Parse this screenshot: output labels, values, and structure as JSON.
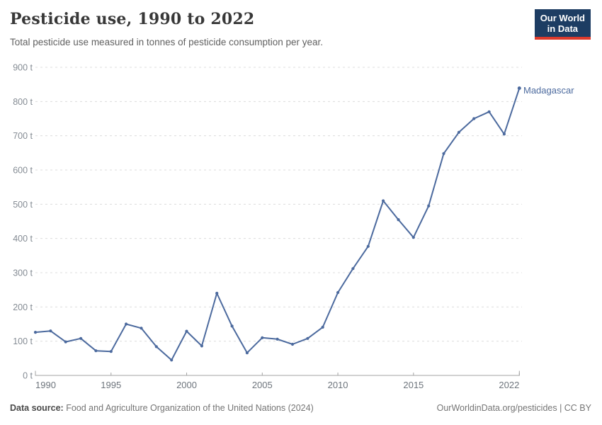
{
  "header": {
    "title": "Pesticide use, 1990 to 2022",
    "subtitle": "Total pesticide use measured in tonnes of pesticide consumption per year."
  },
  "logo": {
    "line1": "Our World",
    "line2": "in Data",
    "bg_color": "#1d3d63",
    "accent_color": "#dc3a2c"
  },
  "chart_data": {
    "type": "line",
    "title": "Pesticide use, 1990 to 2022",
    "xlabel": "",
    "ylabel": "tonnes of pesticide consumption per year",
    "x": [
      1990,
      1991,
      1992,
      1993,
      1994,
      1995,
      1996,
      1997,
      1998,
      1999,
      2000,
      2001,
      2002,
      2003,
      2004,
      2005,
      2006,
      2007,
      2008,
      2009,
      2010,
      2011,
      2012,
      2013,
      2014,
      2015,
      2016,
      2017,
      2018,
      2019,
      2020,
      2021,
      2022
    ],
    "series": [
      {
        "name": "Madagascar",
        "color": "#4c6a9e",
        "values": [
          126,
          130,
          98,
          108,
          72,
          70,
          150,
          138,
          84,
          45,
          129,
          86,
          240,
          144,
          66,
          110,
          106,
          91,
          108,
          141,
          242,
          312,
          377,
          510,
          455,
          403,
          495,
          648,
          710,
          750,
          770,
          705,
          839
        ]
      }
    ],
    "ylim": [
      0,
      900
    ],
    "yticks": [
      0,
      100,
      200,
      300,
      400,
      500,
      600,
      700,
      800,
      900
    ],
    "ytick_suffix": " t",
    "xticks": [
      1990,
      1995,
      2000,
      2005,
      2010,
      2015,
      2022
    ],
    "grid": "horizontal-dashed",
    "legend_position": "line-end-label"
  },
  "footer": {
    "source_label": "Data source:",
    "source_value": "Food and Agriculture Organization of the United Nations (2024)",
    "right_text": "OurWorldinData.org/pesticides | CC BY"
  },
  "colors": {
    "line": "#4c6a9e",
    "grid": "#dcdcdc",
    "axis": "#a3a3a3",
    "y_tick_label": "#858c94",
    "x_tick_label": "#6e757d"
  }
}
